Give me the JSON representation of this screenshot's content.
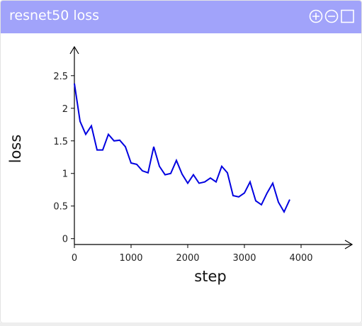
{
  "chart_data": {
    "type": "line",
    "title": "resnet50 loss",
    "x_label": "step",
    "y_label": "loss",
    "x": [
      0,
      100,
      200,
      300,
      400,
      500,
      600,
      700,
      800,
      900,
      1000,
      1100,
      1200,
      1300,
      1400,
      1500,
      1600,
      1700,
      1800,
      1900,
      2000,
      2100,
      2200,
      2300,
      2400,
      2500,
      2600,
      2700,
      2800,
      2900,
      3000,
      3100,
      3200,
      3300,
      3400,
      3500,
      3600,
      3700,
      3800
    ],
    "series": [
      {
        "name": "loss",
        "color": "#0000e0",
        "values": [
          2.38,
          1.8,
          1.6,
          1.73,
          1.36,
          1.36,
          1.6,
          1.5,
          1.51,
          1.41,
          1.16,
          1.14,
          1.04,
          1.01,
          1.41,
          1.11,
          0.98,
          1.0,
          1.2,
          0.99,
          0.85,
          0.98,
          0.85,
          0.87,
          0.93,
          0.87,
          1.11,
          1.01,
          0.66,
          0.64,
          0.7,
          0.87,
          0.58,
          0.52,
          0.7,
          0.85,
          0.56,
          0.41,
          0.6
        ]
      }
    ],
    "xlim": [
      0,
      4850
    ],
    "ylim": [
      -0.09,
      2.9
    ],
    "xticks": [
      0,
      1000,
      2000,
      3000,
      4000
    ],
    "yticks": [
      0,
      0.5,
      1,
      1.5,
      2,
      2.5
    ]
  }
}
